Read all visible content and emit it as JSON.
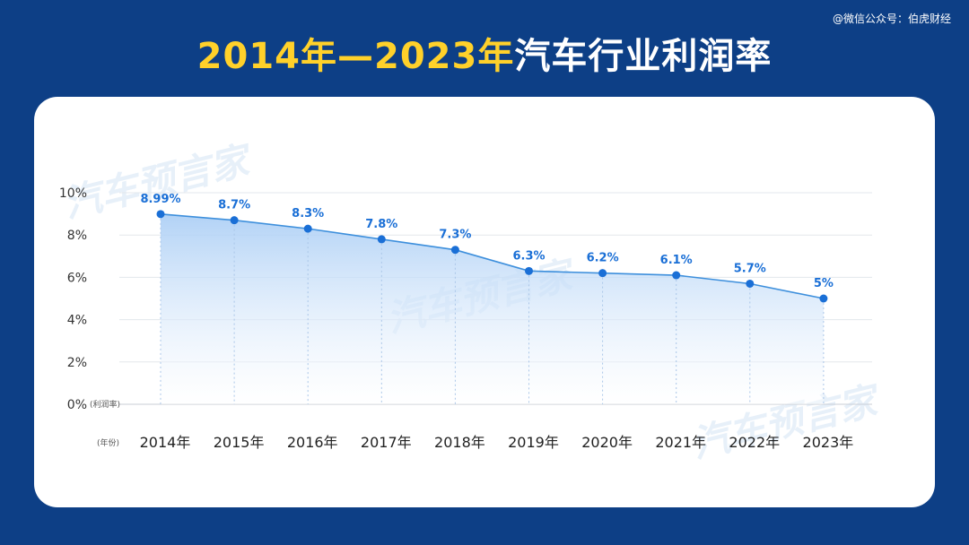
{
  "source": "@微信公众号：伯虎财经",
  "title": {
    "highlight": "2014年—2023年",
    "main": "汽车行业利润率"
  },
  "watermark": "汽车预言家",
  "chart_data": {
    "type": "area",
    "categories": [
      "2014年",
      "2015年",
      "2016年",
      "2017年",
      "2018年",
      "2019年",
      "2020年",
      "2021年",
      "2022年",
      "2023年"
    ],
    "values": [
      8.99,
      8.7,
      8.3,
      7.8,
      7.3,
      6.3,
      6.2,
      6.1,
      5.7,
      5
    ],
    "data_labels": [
      "8.99%",
      "8.7%",
      "8.3%",
      "7.8%",
      "7.3%",
      "6.3%",
      "6.2%",
      "6.1%",
      "5.7%",
      "5%"
    ],
    "yticks": [
      "0%",
      "2%",
      "4%",
      "6%",
      "8%",
      "10%"
    ],
    "ylabel": "(利润率)",
    "xlabel": "(年份)",
    "ylim": [
      0,
      10
    ],
    "grid": true,
    "colors": {
      "line": "#3d8fdc",
      "point": "#1a6fd6",
      "label": "#1a6fd6",
      "fill_top": "#a9cdf5",
      "fill_bottom": "#ffffff"
    }
  }
}
